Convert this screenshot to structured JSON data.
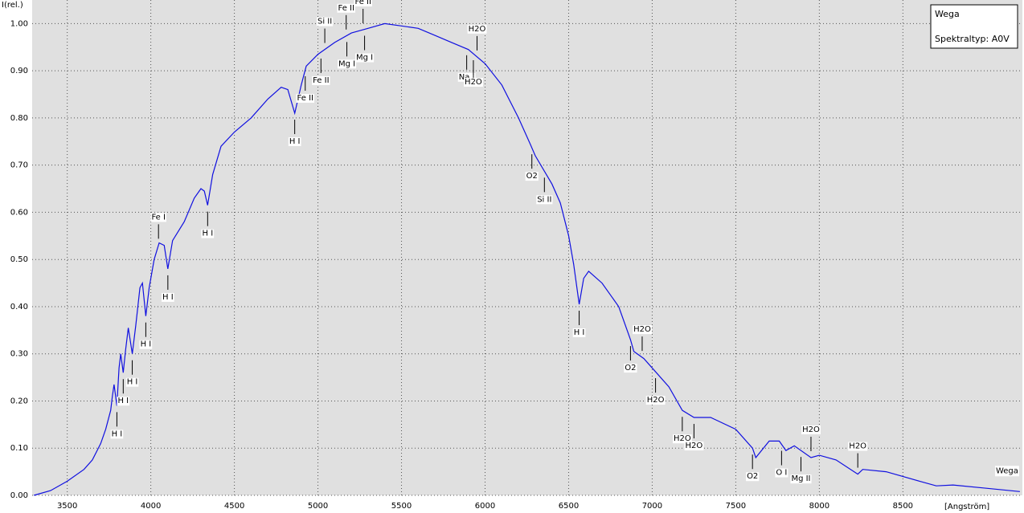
{
  "chart_data": {
    "type": "line",
    "x_label": "[Angström]",
    "y_label": "I(rel.)",
    "xlim": [
      3290,
      9215
    ],
    "ylim": [
      0,
      1.05
    ],
    "xticks": [
      3500,
      4000,
      4500,
      5000,
      5500,
      6000,
      6500,
      7000,
      7500,
      8000,
      8500
    ],
    "yticks": [
      {
        "value": 0,
        "label": "0.00"
      },
      {
        "value": 0.1,
        "label": "0.10"
      },
      {
        "value": 0.2,
        "label": "0.20"
      },
      {
        "value": 0.3,
        "label": "0.30"
      },
      {
        "value": 0.4,
        "label": "0.40"
      },
      {
        "value": 0.5,
        "label": "0.50"
      },
      {
        "value": 0.6,
        "label": "0.60"
      },
      {
        "value": 0.7,
        "label": "0.70"
      },
      {
        "value": 0.8,
        "label": "0.80"
      },
      {
        "value": 0.9,
        "label": "0.90"
      },
      {
        "value": 1.0,
        "label": "1.00"
      }
    ],
    "grid": true,
    "background": "#e0e0e0",
    "legend": {
      "lines": [
        "Wega",
        "Spektraltyp: A0V"
      ],
      "position": "upper right"
    },
    "x": [
      3300,
      3400,
      3500,
      3600,
      3650,
      3700,
      3730,
      3760,
      3770,
      3780,
      3797,
      3810,
      3820,
      3835,
      3850,
      3865,
      3889,
      3910,
      3935,
      3950,
      3970,
      3990,
      4020,
      4050,
      4080,
      4102,
      4130,
      4200,
      4260,
      4300,
      4320,
      4340,
      4370,
      4420,
      4500,
      4600,
      4700,
      4780,
      4820,
      4861,
      4900,
      4930,
      5000,
      5100,
      5200,
      5300,
      5400,
      5500,
      5600,
      5700,
      5800,
      5900,
      6000,
      6100,
      6200,
      6270,
      6300,
      6400,
      6450,
      6500,
      6530,
      6563,
      6590,
      6620,
      6700,
      6800,
      6870,
      6890,
      6950,
      7000,
      7100,
      7180,
      7250,
      7350,
      7500,
      7600,
      7620,
      7700,
      7760,
      7800,
      7850,
      7950,
      8000,
      8100,
      8230,
      8260,
      8400,
      8600,
      8700,
      8800,
      9000,
      9200
    ],
    "series": [
      {
        "name": "Wega",
        "color": "#1010e0",
        "values": [
          0.0,
          0.01,
          0.03,
          0.055,
          0.075,
          0.11,
          0.14,
          0.18,
          0.21,
          0.235,
          0.19,
          0.27,
          0.3,
          0.26,
          0.31,
          0.355,
          0.3,
          0.36,
          0.44,
          0.45,
          0.38,
          0.44,
          0.5,
          0.535,
          0.53,
          0.48,
          0.54,
          0.58,
          0.63,
          0.65,
          0.645,
          0.615,
          0.68,
          0.74,
          0.77,
          0.8,
          0.84,
          0.865,
          0.86,
          0.81,
          0.87,
          0.91,
          0.935,
          0.96,
          0.98,
          0.99,
          1.0,
          0.995,
          0.99,
          0.975,
          0.96,
          0.945,
          0.915,
          0.87,
          0.8,
          0.745,
          0.72,
          0.66,
          0.62,
          0.55,
          0.49,
          0.405,
          0.46,
          0.475,
          0.45,
          0.4,
          0.33,
          0.305,
          0.29,
          0.27,
          0.23,
          0.18,
          0.165,
          0.165,
          0.14,
          0.1,
          0.08,
          0.115,
          0.115,
          0.095,
          0.105,
          0.08,
          0.085,
          0.075,
          0.045,
          0.055,
          0.05,
          0.03,
          0.02,
          0.022,
          0.015,
          0.008
        ]
      }
    ],
    "annotations": [
      {
        "text": "H I",
        "x": 3797,
        "side": "below"
      },
      {
        "text": "H I",
        "x": 3835,
        "side": "below"
      },
      {
        "text": "H I",
        "x": 3889,
        "side": "below"
      },
      {
        "text": "H I",
        "x": 3970,
        "side": "below"
      },
      {
        "text": "Fe I",
        "x": 4046,
        "side": "above"
      },
      {
        "text": "H I",
        "x": 4102,
        "side": "below"
      },
      {
        "text": "H I",
        "x": 4340,
        "side": "below"
      },
      {
        "text": "H I",
        "x": 4861,
        "side": "below"
      },
      {
        "text": "Fe II",
        "x": 4924,
        "side": "below"
      },
      {
        "text": "Fe II",
        "x": 5018,
        "side": "below"
      },
      {
        "text": "Si II",
        "x": 5041,
        "side": "above"
      },
      {
        "text": "Fe II",
        "x": 5169,
        "side": "above"
      },
      {
        "text": "Mg I",
        "x": 5173,
        "side": "below"
      },
      {
        "text": "Fe II",
        "x": 5270,
        "side": "above"
      },
      {
        "text": "Mg I",
        "x": 5279,
        "side": "below"
      },
      {
        "text": "Na I",
        "x": 5890,
        "side": "below"
      },
      {
        "text": "H2O",
        "x": 5930,
        "side": "below"
      },
      {
        "text": "H2O",
        "x": 5952,
        "side": "above"
      },
      {
        "text": "O2",
        "x": 6280,
        "side": "below"
      },
      {
        "text": "Si II",
        "x": 6355,
        "side": "below"
      },
      {
        "text": "H I",
        "x": 6563,
        "side": "below"
      },
      {
        "text": "O2",
        "x": 6870,
        "side": "below"
      },
      {
        "text": "H2O",
        "x": 6940,
        "side": "above"
      },
      {
        "text": "H2O",
        "x": 7020,
        "side": "below"
      },
      {
        "text": "H2O",
        "x": 7180,
        "side": "below"
      },
      {
        "text": "H2O",
        "x": 7250,
        "side": "below"
      },
      {
        "text": "O2",
        "x": 7600,
        "side": "below"
      },
      {
        "text": "O I",
        "x": 7774,
        "side": "below"
      },
      {
        "text": "Mg II",
        "x": 7890,
        "side": "below"
      },
      {
        "text": "H2O",
        "x": 7950,
        "side": "above"
      },
      {
        "text": "H2O",
        "x": 8230,
        "side": "above"
      }
    ]
  }
}
